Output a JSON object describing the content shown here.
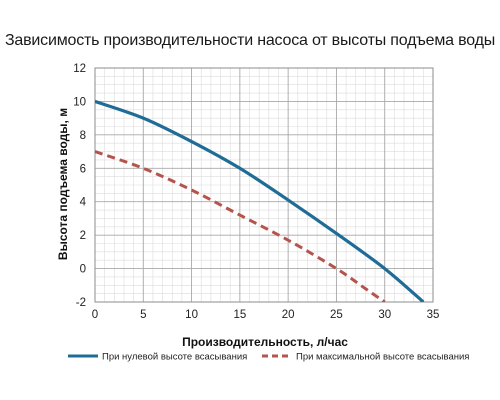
{
  "chart_data": {
    "type": "line",
    "title": "Зависимость производительности насоса от высоты подъема воды",
    "xlabel": "Производительность, л/час",
    "ylabel": "Высота подъема воды, м",
    "xlim": [
      0,
      35
    ],
    "ylim": [
      -2,
      12
    ],
    "x_ticks": [
      0,
      5,
      10,
      15,
      20,
      25,
      30,
      35
    ],
    "y_ticks": [
      -2,
      0,
      2,
      4,
      6,
      8,
      10,
      12
    ],
    "grid": true,
    "minor_grid": true,
    "legend_position": "bottom",
    "series": [
      {
        "name": "При нулевой высоте всасывания",
        "color": "#1f6c96",
        "style": "solid",
        "points": [
          [
            0,
            10
          ],
          [
            5,
            9
          ],
          [
            10,
            7.6
          ],
          [
            15,
            6
          ],
          [
            20,
            4.1
          ],
          [
            25,
            2.1
          ],
          [
            30,
            0
          ],
          [
            34,
            -2
          ]
        ]
      },
      {
        "name": "При максимальной высоте всасывания",
        "color": "#b5544c",
        "style": "dashed",
        "points": [
          [
            0,
            7
          ],
          [
            5,
            6
          ],
          [
            10,
            4.7
          ],
          [
            15,
            3.2
          ],
          [
            20,
            1.7
          ],
          [
            25,
            0
          ],
          [
            28,
            -1.2
          ],
          [
            30,
            -2
          ]
        ]
      }
    ]
  }
}
